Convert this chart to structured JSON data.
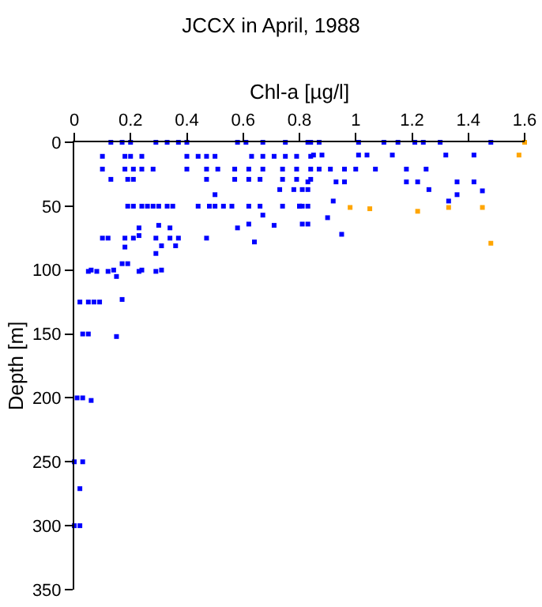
{
  "chart_data": {
    "type": "scatter",
    "title": "JCCX in April, 1988",
    "xlabel": "Chl-a [µg/l]",
    "ylabel": "Depth [m]",
    "xlim": [
      0,
      1.6
    ],
    "xticks": [
      0,
      0.2,
      0.4,
      0.6,
      0.8,
      1,
      1.2,
      1.4,
      1.6
    ],
    "ylim": [
      350,
      0
    ],
    "yticks": [
      0,
      50,
      100,
      150,
      200,
      250,
      300,
      350
    ],
    "grid": false,
    "marker": "square",
    "series": [
      {
        "color": "#0000ff",
        "x": [
          0.13,
          0.17,
          0.2,
          0.29,
          0.33,
          0.37,
          0.4,
          0.58,
          0.61,
          0.67,
          0.75,
          0.83,
          0.84,
          0.87,
          1.01,
          1.1,
          1.15,
          1.21,
          1.24,
          1.3,
          1.48,
          0.1,
          0.18,
          0.2,
          0.24,
          0.4,
          0.44,
          0.47,
          0.5,
          0.63,
          0.67,
          0.71,
          0.75,
          0.79,
          0.84,
          0.85,
          0.88,
          1.01,
          1.04,
          1.13,
          1.32,
          1.42,
          0.1,
          0.18,
          0.21,
          0.24,
          0.28,
          0.4,
          0.47,
          0.51,
          0.57,
          0.62,
          0.67,
          0.74,
          0.79,
          0.84,
          0.87,
          0.91,
          0.96,
          1.0,
          1.07,
          1.18,
          1.25,
          0.13,
          0.19,
          0.21,
          0.47,
          0.57,
          0.62,
          0.66,
          0.74,
          0.79,
          0.84,
          0.83,
          0.93,
          0.96,
          1.18,
          1.22,
          1.36,
          1.42,
          1.45,
          0.73,
          0.78,
          0.83,
          0.81,
          1.26,
          1.36,
          0.5,
          0.19,
          0.21,
          0.24,
          0.26,
          0.28,
          0.3,
          0.33,
          0.35,
          0.44,
          0.48,
          0.5,
          0.53,
          0.56,
          0.62,
          0.66,
          0.74,
          0.8,
          0.83,
          0.8,
          0.81,
          0.92,
          1.33,
          0.62,
          0.71,
          0.67,
          0.83,
          0.9,
          0.81,
          0.95,
          0.23,
          0.3,
          0.34,
          0.23,
          0.1,
          0.12,
          0.18,
          0.21,
          0.29,
          0.34,
          0.37,
          0.47,
          0.58,
          0.64,
          0.18,
          0.29,
          0.31,
          0.36,
          0.05,
          0.08,
          0.12,
          0.15,
          0.17,
          0.19,
          0.23,
          0.29,
          0.06,
          0.14,
          0.24,
          0.31,
          0.02,
          0.05,
          0.07,
          0.09,
          0.17,
          0.03,
          0.05,
          0.15,
          0.01,
          0.03,
          0.06,
          0.0,
          0.03,
          0.02,
          0.0,
          0.02
        ],
        "values": [
          0,
          0,
          0,
          0,
          0,
          0,
          0,
          0,
          0,
          0,
          0,
          0,
          0,
          0,
          0,
          0,
          0,
          0,
          0,
          0,
          0,
          11,
          11,
          11,
          11,
          11,
          11,
          11,
          11,
          11,
          11,
          11,
          11,
          11,
          11,
          10,
          10,
          10,
          10,
          10,
          10,
          10,
          21,
          21,
          21,
          21,
          21,
          21,
          21,
          21,
          21,
          21,
          21,
          21,
          21,
          21,
          21,
          21,
          21,
          21,
          21,
          21,
          21,
          29,
          29,
          29,
          29,
          29,
          29,
          29,
          29,
          29,
          29,
          31,
          31,
          31,
          31,
          31,
          31,
          31,
          38,
          37,
          37,
          37,
          37,
          37,
          41,
          41,
          50,
          50,
          50,
          50,
          50,
          50,
          50,
          50,
          50,
          50,
          50,
          50,
          50,
          50,
          50,
          50,
          50,
          50,
          50,
          50,
          46,
          46,
          64,
          65,
          57,
          64,
          59,
          64,
          72,
          67,
          65,
          67,
          73,
          75,
          75,
          75,
          75,
          75,
          75,
          75,
          75,
          67,
          78,
          82,
          87,
          81,
          81,
          101,
          101,
          101,
          105,
          95,
          95,
          101,
          101,
          100,
          100,
          100,
          100,
          125,
          125,
          125,
          125,
          123,
          150,
          150,
          152,
          200,
          200,
          202,
          250,
          250,
          271,
          300,
          300
        ]
      },
      {
        "color": "#ffa500",
        "x": [
          1.6,
          1.58,
          0.98,
          1.05,
          1.22,
          1.33,
          1.45,
          1.48
        ],
        "values": [
          0,
          10,
          51,
          52,
          54,
          51,
          51,
          79
        ]
      }
    ]
  }
}
